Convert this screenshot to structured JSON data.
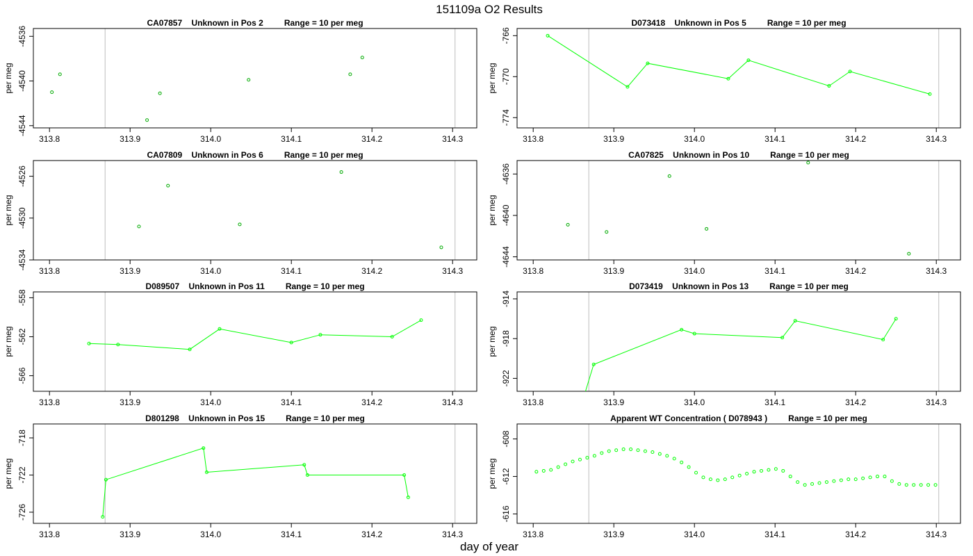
{
  "figure": {
    "title": "151109a  O2 Results",
    "xlabel": "day of year"
  },
  "chart_data": [
    {
      "type": "scatter",
      "title": "CA07857    Unknown in Pos 2         Range = 10 per meg",
      "ylabel": "per meg",
      "xlim": [
        313.78,
        314.33
      ],
      "ylim": [
        -4544.2,
        -4535.3
      ],
      "xticks": [
        "313.8",
        "313.9",
        "314.0",
        "314.1",
        "314.2",
        "314.3"
      ],
      "yticks": [
        "-4536",
        "-4540",
        "-4544"
      ],
      "vlines": [
        313.869,
        314.303
      ],
      "connected": false,
      "color": "#00aa00",
      "x": [
        313.803,
        313.813,
        313.921,
        313.937,
        314.047,
        314.173,
        314.188
      ],
      "y": [
        -4541.0,
        -4539.4,
        -4543.5,
        -4541.1,
        -4539.9,
        -4539.4,
        -4537.9
      ]
    },
    {
      "type": "line",
      "title": "D073418    Unknown in Pos 5         Range = 10 per meg",
      "ylabel": "per meg",
      "xlim": [
        313.78,
        314.33
      ],
      "ylim": [
        -775.0,
        -765.3
      ],
      "xticks": [
        "313.8",
        "313.9",
        "314.0",
        "314.1",
        "314.2",
        "314.3"
      ],
      "yticks": [
        "-766",
        "-770",
        "-774"
      ],
      "vlines": [
        313.869,
        314.303
      ],
      "connected": true,
      "color": "#00ff00",
      "x": [
        313.818,
        313.917,
        313.942,
        314.042,
        314.067,
        314.167,
        314.193,
        314.292
      ],
      "y": [
        -766.0,
        -771.0,
        -768.7,
        -770.2,
        -768.4,
        -770.9,
        -769.5,
        -771.7
      ]
    },
    {
      "type": "scatter",
      "title": "CA07809    Unknown in Pos 6         Range = 10 per meg",
      "ylabel": "per meg",
      "xlim": [
        313.78,
        314.33
      ],
      "ylim": [
        -4534.0,
        -4524.5
      ],
      "xticks": [
        "313.8",
        "313.9",
        "314.0",
        "314.1",
        "314.2",
        "314.3"
      ],
      "yticks": [
        "-4526",
        "-4530",
        "-4534"
      ],
      "vlines": [
        313.869,
        314.303
      ],
      "connected": false,
      "color": "#00aa00",
      "x": [
        313.911,
        313.947,
        314.036,
        314.162,
        314.286
      ],
      "y": [
        -4530.8,
        -4526.9,
        -4530.6,
        -4525.6,
        -4532.8
      ]
    },
    {
      "type": "scatter",
      "title": "CA07825    Unknown in Pos 10         Range = 10 per meg",
      "ylabel": "per meg",
      "xlim": [
        313.78,
        314.33
      ],
      "ylim": [
        -4644.3,
        -4634.7
      ],
      "xticks": [
        "313.8",
        "313.9",
        "314.0",
        "314.1",
        "314.2",
        "314.3"
      ],
      "yticks": [
        "-4636",
        "-4640",
        "-4644"
      ],
      "vlines": [
        313.869,
        314.303
      ],
      "connected": false,
      "color": "#00aa00",
      "x": [
        313.843,
        313.891,
        313.969,
        314.015,
        314.141,
        314.266
      ],
      "y": [
        -4640.9,
        -4641.6,
        -4636.2,
        -4641.3,
        -4634.9,
        -4643.7
      ]
    },
    {
      "type": "line",
      "title": "D089507    Unknown in Pos 11         Range = 10 per meg",
      "ylabel": "per meg",
      "xlim": [
        313.78,
        314.33
      ],
      "ylim": [
        -567.6,
        -557.4
      ],
      "xticks": [
        "313.8",
        "313.9",
        "314.0",
        "314.1",
        "314.2",
        "314.3"
      ],
      "yticks": [
        "-558",
        "-562",
        "-566"
      ],
      "vlines": [
        313.869,
        314.303
      ],
      "connected": true,
      "color": "#00ff00",
      "x": [
        313.849,
        313.885,
        313.974,
        314.011,
        314.1,
        314.136,
        314.225,
        314.261
      ],
      "y": [
        -562.7,
        -562.8,
        -563.3,
        -561.2,
        -562.6,
        -561.8,
        -562.0,
        -560.3
      ]
    },
    {
      "type": "line",
      "title": "D073419    Unknown in Pos 13         Range = 10 per meg",
      "ylabel": "per meg",
      "xlim": [
        313.78,
        314.33
      ],
      "ylim": [
        -923.3,
        -913.3
      ],
      "xticks": [
        "313.8",
        "313.9",
        "314.0",
        "314.1",
        "314.2",
        "314.3"
      ],
      "yticks": [
        "-914",
        "-918",
        "-922"
      ],
      "vlines": [
        313.869,
        314.303
      ],
      "connected": true,
      "color": "#00ff00",
      "x": [
        313.86,
        313.875,
        313.984,
        314.0,
        314.109,
        314.125,
        314.234,
        314.25
      ],
      "y": [
        -924.6,
        -920.6,
        -917.1,
        -917.5,
        -917.9,
        -916.2,
        -918.1,
        -916.0
      ]
    },
    {
      "type": "line",
      "title": "D801298    Unknown in Pos 15         Range = 10 per meg",
      "ylabel": "per meg",
      "xlim": [
        313.78,
        314.33
      ],
      "ylim": [
        -727.2,
        -716.5
      ],
      "xticks": [
        "313.8",
        "313.9",
        "314.0",
        "314.1",
        "314.2",
        "314.3"
      ],
      "yticks": [
        "-718",
        "-722",
        "-726"
      ],
      "vlines": [
        313.869,
        314.303
      ],
      "connected": true,
      "color": "#00ff00",
      "x": [
        313.866,
        313.87,
        313.991,
        313.995,
        314.116,
        314.12,
        314.24,
        314.245
      ],
      "y": [
        -726.5,
        -722.5,
        -719.1,
        -721.7,
        -720.9,
        -722.0,
        -722.0,
        -724.4
      ]
    },
    {
      "type": "line",
      "title": "Apparent WT Concentration ( D078943 )         Range = 10 per meg",
      "ylabel": "per meg",
      "xlim": [
        313.78,
        314.33
      ],
      "ylim": [
        -617.0,
        -606.4
      ],
      "xticks": [
        "313.8",
        "313.9",
        "314.0",
        "314.1",
        "314.2",
        "314.3"
      ],
      "yticks": [
        "-608",
        "-612",
        "-616"
      ],
      "vlines": [
        313.869,
        314.303
      ],
      "connected": false,
      "color": "#00ff00",
      "x": [
        313.804,
        313.813,
        313.822,
        313.831,
        313.84,
        313.849,
        313.858,
        313.867,
        313.876,
        313.885,
        313.894,
        313.903,
        313.912,
        313.921,
        313.93,
        313.939,
        313.948,
        313.957,
        313.966,
        313.975,
        313.984,
        313.993,
        314.002,
        314.011,
        314.02,
        314.029,
        314.038,
        314.047,
        314.056,
        314.065,
        314.074,
        314.083,
        314.092,
        314.101,
        314.11,
        314.119,
        314.128,
        314.137,
        314.146,
        314.155,
        314.164,
        314.173,
        314.182,
        314.191,
        314.2,
        314.209,
        314.218,
        314.227,
        314.236,
        314.245,
        314.254,
        314.263,
        314.272,
        314.281,
        314.29,
        314.299
      ],
      "y": [
        -611.5,
        -611.4,
        -611.3,
        -611.0,
        -610.7,
        -610.4,
        -610.2,
        -610.0,
        -609.8,
        -609.5,
        -609.3,
        -609.2,
        -609.1,
        -609.1,
        -609.2,
        -609.3,
        -609.4,
        -609.6,
        -609.8,
        -610.1,
        -610.5,
        -611.0,
        -611.6,
        -612.1,
        -612.3,
        -612.4,
        -612.3,
        -612.1,
        -611.9,
        -611.7,
        -611.5,
        -611.4,
        -611.3,
        -611.2,
        -611.4,
        -612.0,
        -612.6,
        -612.9,
        -612.8,
        -612.7,
        -612.6,
        -612.5,
        -612.4,
        -612.3,
        -612.3,
        -612.2,
        -612.1,
        -612.0,
        -612.0,
        -612.5,
        -612.8,
        -612.9,
        -612.9,
        -612.9,
        -612.9,
        -612.9
      ]
    }
  ]
}
